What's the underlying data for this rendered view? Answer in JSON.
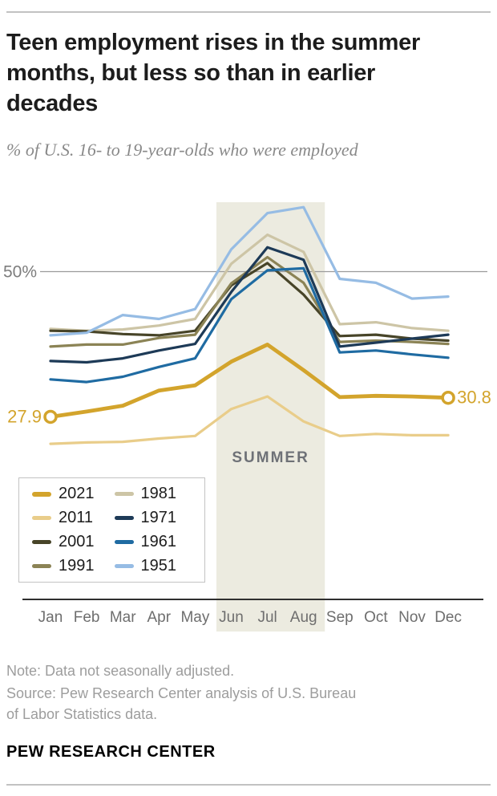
{
  "header": {
    "title_lines": [
      "Teen employment rises in the summer",
      "months, but less so than in earlier",
      "decades"
    ],
    "subtitle": "% of U.S. 16- to 19-year-olds who were employed"
  },
  "chart_data": {
    "type": "line",
    "x": [
      "Jan",
      "Feb",
      "Mar",
      "Apr",
      "May",
      "Jun",
      "Jul",
      "Aug",
      "Sep",
      "Oct",
      "Nov",
      "Dec"
    ],
    "series": [
      {
        "name": "2021",
        "color": "#d3a42c",
        "values": [
          27.9,
          28.7,
          29.6,
          31.9,
          32.7,
          36.3,
          38.9,
          35.0,
          30.9,
          31.1,
          31.0,
          30.8
        ]
      },
      {
        "name": "2011",
        "color": "#e9cd8a",
        "values": [
          23.8,
          24.0,
          24.1,
          24.6,
          25.0,
          29.1,
          31.0,
          27.2,
          25.0,
          25.3,
          25.1,
          25.1
        ]
      },
      {
        "name": "2001",
        "color": "#474428",
        "values": [
          41.0,
          40.9,
          40.5,
          40.3,
          41.0,
          47.9,
          51.3,
          46.5,
          40.2,
          40.4,
          39.8,
          39.5
        ]
      },
      {
        "name": "1991",
        "color": "#8b8355",
        "values": [
          38.6,
          38.9,
          38.9,
          39.9,
          40.4,
          48.2,
          52.2,
          48.3,
          39.3,
          39.5,
          39.3,
          39.0
        ]
      },
      {
        "name": "1981",
        "color": "#cdc5a6",
        "values": [
          41.3,
          41.0,
          41.2,
          41.8,
          42.8,
          51.2,
          55.6,
          53.0,
          42.0,
          42.3,
          41.4,
          41.0
        ]
      },
      {
        "name": "1971",
        "color": "#1d3a57",
        "values": [
          36.4,
          36.2,
          36.8,
          38.0,
          39.0,
          46.9,
          53.7,
          51.8,
          38.6,
          39.2,
          39.8,
          40.4
        ]
      },
      {
        "name": "1961",
        "color": "#1f6ba2",
        "values": [
          33.6,
          33.2,
          34.0,
          35.5,
          36.8,
          45.8,
          50.2,
          50.5,
          37.7,
          38.0,
          37.4,
          36.9
        ]
      },
      {
        "name": "1951",
        "color": "#96bce4",
        "values": [
          40.3,
          40.7,
          43.4,
          42.8,
          44.3,
          53.4,
          58.9,
          59.8,
          48.9,
          48.3,
          45.9,
          46.2
        ]
      }
    ],
    "gridline": {
      "value": 50,
      "label": "50%"
    },
    "annotations": {
      "start_label": "27.9",
      "end_label": "30.8",
      "summer_label": "SUMMER",
      "summer_months": [
        "Jun",
        "Aug"
      ]
    },
    "ylim": [
      20,
      63
    ],
    "legend_rows": [
      [
        "2021",
        "1981"
      ],
      [
        "2011",
        "1971"
      ],
      [
        "2001",
        "1961"
      ],
      [
        "1991",
        "1951"
      ]
    ]
  },
  "footer": {
    "note": "Note: Data not seasonally adjusted.",
    "source_lines": [
      "Source: Pew Research Center analysis of U.S. Bureau",
      "of Labor Statistics data."
    ],
    "brand": "PEW RESEARCH CENTER"
  }
}
